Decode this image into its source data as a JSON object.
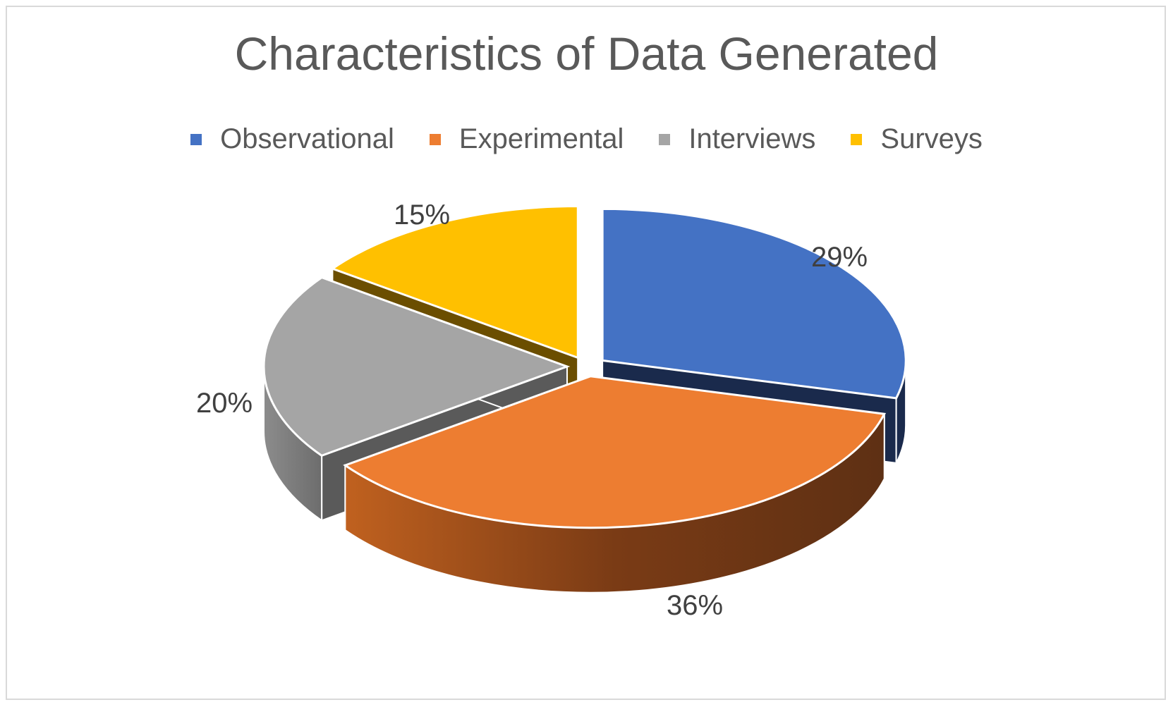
{
  "chart_data": {
    "type": "pie",
    "title": "Characteristics of Data Generated",
    "legend_position": "top",
    "slices": [
      {
        "label": "Observational",
        "value": 29,
        "display": "29%",
        "color": "#4472c4"
      },
      {
        "label": "Experimental",
        "value": 36,
        "display": "36%",
        "color": "#ed7d31"
      },
      {
        "label": "Interviews",
        "value": 20,
        "display": "20%",
        "color": "#a5a5a5"
      },
      {
        "label": "Surveys",
        "value": 15,
        "display": "15%",
        "color": "#ffc000"
      }
    ]
  }
}
